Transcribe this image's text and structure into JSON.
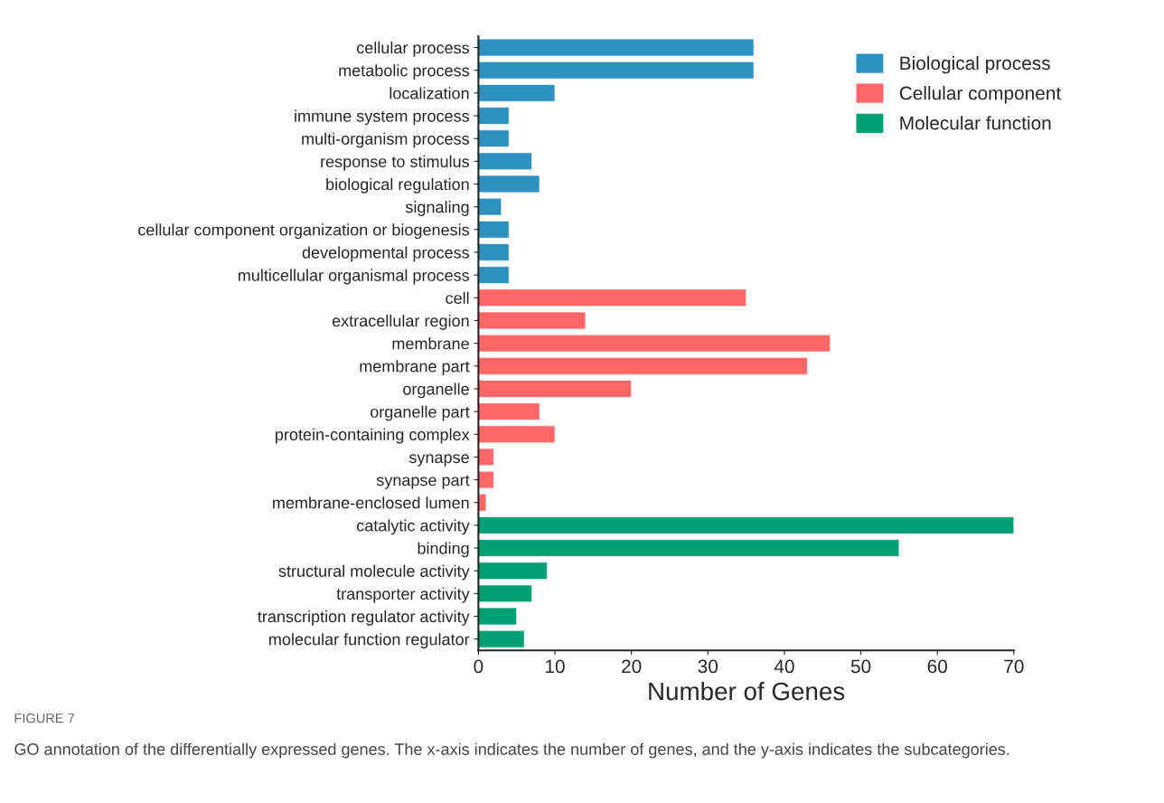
{
  "chart_data": {
    "type": "bar",
    "orientation": "horizontal",
    "xlabel": "Number of Genes",
    "categories": [
      "cellular process",
      "metabolic process",
      "localization",
      "immune system process",
      "multi-organism process",
      "response to stimulus",
      "biological regulation",
      "signaling",
      "cellular component organization or biogenesis",
      "developmental process",
      "multicellular organismal process",
      "cell",
      "extracellular region",
      "membrane",
      "membrane part",
      "organelle",
      "organelle part",
      "protein-containing complex",
      "synapse",
      "synapse part",
      "membrane-enclosed lumen",
      "catalytic activity",
      "binding",
      "structural molecule activity",
      "transporter activity",
      "transcription regulator activity",
      "molecular function regulator"
    ],
    "series": [
      {
        "name": "Biological process",
        "color": "#2e90bf",
        "values": [
          36,
          36,
          10,
          4,
          4,
          7,
          8,
          3,
          4,
          4,
          4,
          null,
          null,
          null,
          null,
          null,
          null,
          null,
          null,
          null,
          null,
          null,
          null,
          null,
          null,
          null,
          null
        ]
      },
      {
        "name": "Cellular component",
        "color": "#ff6666",
        "values": [
          null,
          null,
          null,
          null,
          null,
          null,
          null,
          null,
          null,
          null,
          null,
          35,
          14,
          46,
          43,
          20,
          8,
          10,
          2,
          2,
          1,
          null,
          null,
          null,
          null,
          null,
          null
        ]
      },
      {
        "name": "Molecular function",
        "color": "#00a073",
        "values": [
          null,
          null,
          null,
          null,
          null,
          null,
          null,
          null,
          null,
          null,
          null,
          null,
          null,
          null,
          null,
          null,
          null,
          null,
          null,
          null,
          null,
          70,
          55,
          9,
          7,
          5,
          6
        ]
      }
    ],
    "xlim": [
      0,
      70
    ],
    "xticks": [
      0,
      10,
      20,
      30,
      40,
      50,
      60,
      70
    ],
    "grid": false,
    "legend": "top right",
    "annotations": [
      "FIGURE 7",
      "GO annotation of the differentially expressed genes. The x-axis indicates the number of genes, and the y-axis indicates the subcategories."
    ]
  }
}
